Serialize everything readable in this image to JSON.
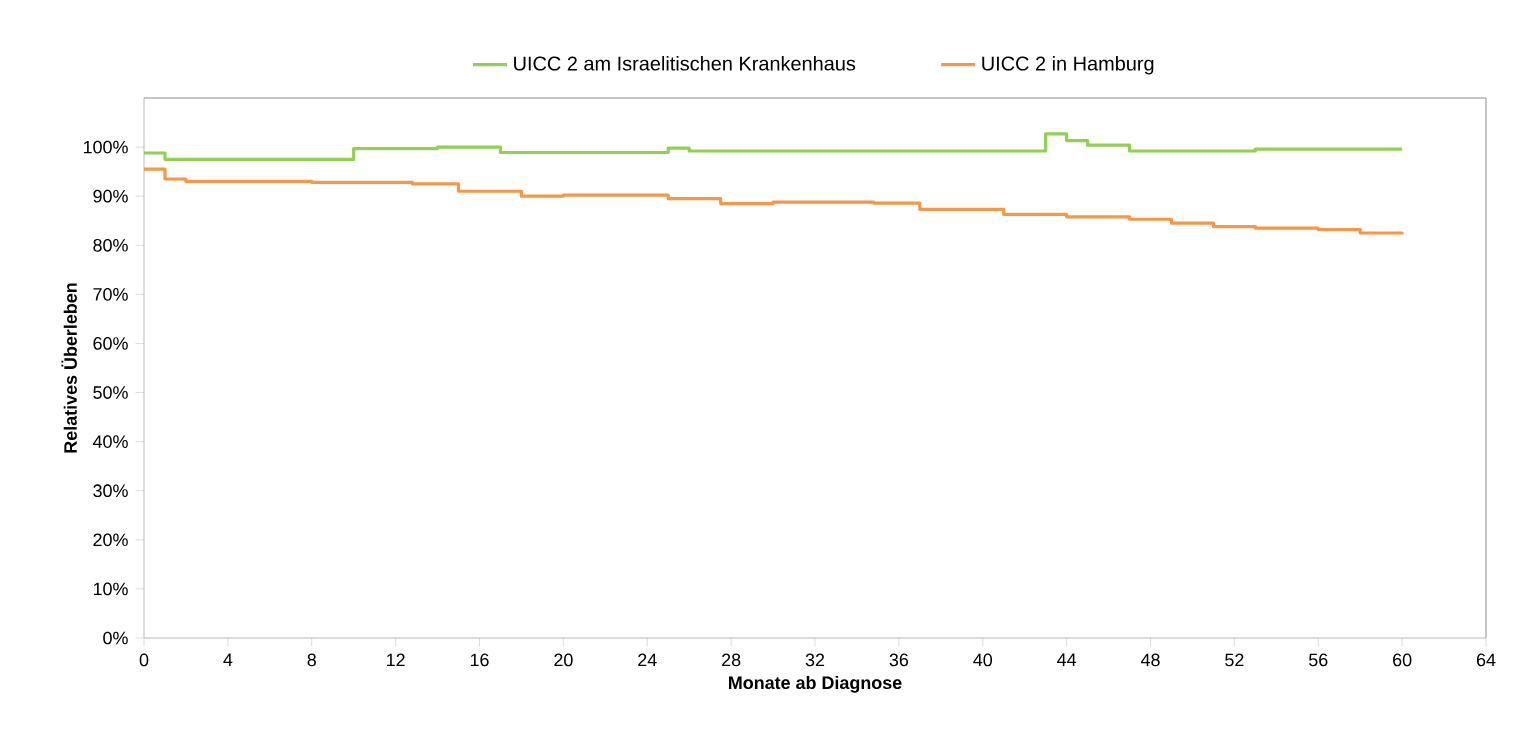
{
  "chart_data": {
    "type": "step",
    "xlabel": "Monate ab Diagnose",
    "ylabel": "Relatives Überleben",
    "xlim": [
      0,
      64
    ],
    "xticks": [
      0,
      4,
      8,
      12,
      16,
      20,
      24,
      28,
      32,
      36,
      40,
      44,
      48,
      52,
      56,
      60,
      64
    ],
    "ylim": [
      0,
      110
    ],
    "yticks": [
      {
        "value": 0,
        "label": "0%"
      },
      {
        "value": 10,
        "label": "10%"
      },
      {
        "value": 20,
        "label": "20%"
      },
      {
        "value": 30,
        "label": "30%"
      },
      {
        "value": 40,
        "label": "40%"
      },
      {
        "value": 50,
        "label": "50%"
      },
      {
        "value": 60,
        "label": "60%"
      },
      {
        "value": 70,
        "label": "70%"
      },
      {
        "value": 80,
        "label": "80%"
      },
      {
        "value": 90,
        "label": "90%"
      },
      {
        "value": 100,
        "label": "100%"
      }
    ],
    "grid": false,
    "legend": "top",
    "marker": "none",
    "line_style": "solid",
    "series": [
      {
        "name": "UICC 2 am Israelitischen Krankenhaus",
        "color": "#92d050",
        "x": [
          0,
          1,
          10,
          14,
          17,
          25,
          26,
          43,
          44,
          45,
          47,
          53,
          60
        ],
        "values": [
          98.8,
          97.5,
          99.7,
          100,
          98.9,
          99.8,
          99.2,
          102.7,
          101.3,
          100.4,
          99.2,
          99.6,
          99.6
        ]
      },
      {
        "name": "UICC 2 in Hamburg",
        "color": "#f79646",
        "x": [
          0,
          1,
          2,
          8,
          12.8,
          15,
          18,
          20,
          25,
          27.5,
          30,
          34.8,
          37,
          41,
          44,
          47,
          49,
          51,
          53,
          56,
          58,
          60
        ],
        "values": [
          95.5,
          93.5,
          93,
          92.8,
          92.5,
          91,
          90,
          90.2,
          89.5,
          88.5,
          88.8,
          88.6,
          87.3,
          86.3,
          85.8,
          85.3,
          84.5,
          83.8,
          83.5,
          83.2,
          82.5,
          82.2
        ]
      }
    ]
  }
}
